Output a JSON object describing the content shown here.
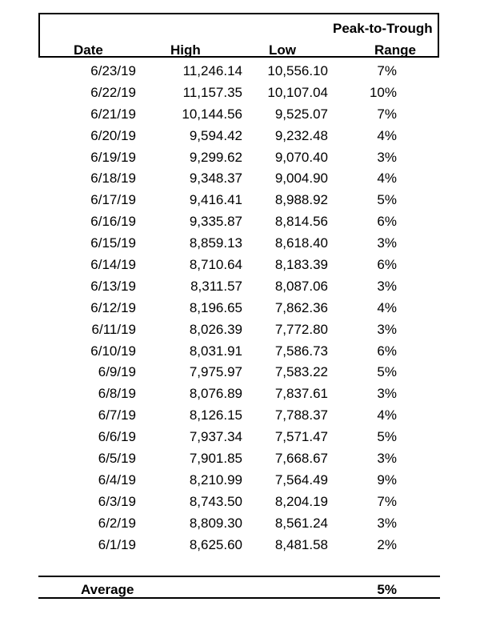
{
  "table": {
    "headers": {
      "date": "Date",
      "high": "High",
      "low": "Low",
      "range_top": "Peak-to-Trough",
      "range_bottom": "Range"
    },
    "rows": [
      {
        "date": "6/23/19",
        "high": "11,246.14",
        "low": "10,556.10",
        "range": "7%"
      },
      {
        "date": "6/22/19",
        "high": "11,157.35",
        "low": "10,107.04",
        "range": "10%"
      },
      {
        "date": "6/21/19",
        "high": "10,144.56",
        "low": "9,525.07",
        "range": "7%"
      },
      {
        "date": "6/20/19",
        "high": "9,594.42",
        "low": "9,232.48",
        "range": "4%"
      },
      {
        "date": "6/19/19",
        "high": "9,299.62",
        "low": "9,070.40",
        "range": "3%"
      },
      {
        "date": "6/18/19",
        "high": "9,348.37",
        "low": "9,004.90",
        "range": "4%"
      },
      {
        "date": "6/17/19",
        "high": "9,416.41",
        "low": "8,988.92",
        "range": "5%"
      },
      {
        "date": "6/16/19",
        "high": "9,335.87",
        "low": "8,814.56",
        "range": "6%"
      },
      {
        "date": "6/15/19",
        "high": "8,859.13",
        "low": "8,618.40",
        "range": "3%"
      },
      {
        "date": "6/14/19",
        "high": "8,710.64",
        "low": "8,183.39",
        "range": "6%"
      },
      {
        "date": "6/13/19",
        "high": "8,311.57",
        "low": "8,087.06",
        "range": "3%"
      },
      {
        "date": "6/12/19",
        "high": "8,196.65",
        "low": "7,862.36",
        "range": "4%"
      },
      {
        "date": "6/11/19",
        "high": "8,026.39",
        "low": "7,772.80",
        "range": "3%"
      },
      {
        "date": "6/10/19",
        "high": "8,031.91",
        "low": "7,586.73",
        "range": "6%"
      },
      {
        "date": "6/9/19",
        "high": "7,975.97",
        "low": "7,583.22",
        "range": "5%"
      },
      {
        "date": "6/8/19",
        "high": "8,076.89",
        "low": "7,837.61",
        "range": "3%"
      },
      {
        "date": "6/7/19",
        "high": "8,126.15",
        "low": "7,788.37",
        "range": "4%"
      },
      {
        "date": "6/6/19",
        "high": "7,937.34",
        "low": "7,571.47",
        "range": "5%"
      },
      {
        "date": "6/5/19",
        "high": "7,901.85",
        "low": "7,668.67",
        "range": "3%"
      },
      {
        "date": "6/4/19",
        "high": "8,210.99",
        "low": "7,564.49",
        "range": "9%"
      },
      {
        "date": "6/3/19",
        "high": "8,743.50",
        "low": "8,204.19",
        "range": "7%"
      },
      {
        "date": "6/2/19",
        "high": "8,809.30",
        "low": "8,561.24",
        "range": "3%"
      },
      {
        "date": "6/1/19",
        "high": "8,625.60",
        "low": "8,481.58",
        "range": "2%"
      }
    ],
    "average": {
      "label": "Average",
      "range": "5%"
    }
  }
}
